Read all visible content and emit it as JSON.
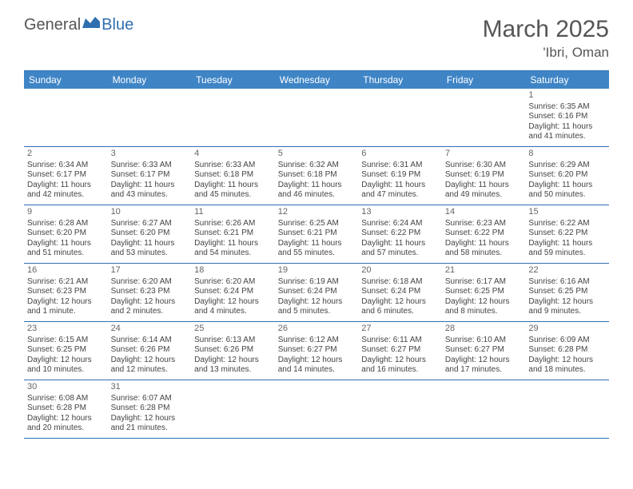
{
  "logo": {
    "part1": "General",
    "part2": "Blue"
  },
  "title": "March 2025",
  "location": "'Ibri, Oman",
  "colors": {
    "header_bg": "#3f85c6",
    "rule": "#2f6fb0",
    "logo_accent": "#2f6fb0",
    "text_muted": "#555"
  },
  "dayNames": [
    "Sunday",
    "Monday",
    "Tuesday",
    "Wednesday",
    "Thursday",
    "Friday",
    "Saturday"
  ],
  "weeks": [
    [
      null,
      null,
      null,
      null,
      null,
      null,
      {
        "n": "1",
        "sr": "Sunrise: 6:35 AM",
        "ss": "Sunset: 6:16 PM",
        "dl": "Daylight: 11 hours and 41 minutes."
      }
    ],
    [
      {
        "n": "2",
        "sr": "Sunrise: 6:34 AM",
        "ss": "Sunset: 6:17 PM",
        "dl": "Daylight: 11 hours and 42 minutes."
      },
      {
        "n": "3",
        "sr": "Sunrise: 6:33 AM",
        "ss": "Sunset: 6:17 PM",
        "dl": "Daylight: 11 hours and 43 minutes."
      },
      {
        "n": "4",
        "sr": "Sunrise: 6:33 AM",
        "ss": "Sunset: 6:18 PM",
        "dl": "Daylight: 11 hours and 45 minutes."
      },
      {
        "n": "5",
        "sr": "Sunrise: 6:32 AM",
        "ss": "Sunset: 6:18 PM",
        "dl": "Daylight: 11 hours and 46 minutes."
      },
      {
        "n": "6",
        "sr": "Sunrise: 6:31 AM",
        "ss": "Sunset: 6:19 PM",
        "dl": "Daylight: 11 hours and 47 minutes."
      },
      {
        "n": "7",
        "sr": "Sunrise: 6:30 AM",
        "ss": "Sunset: 6:19 PM",
        "dl": "Daylight: 11 hours and 49 minutes."
      },
      {
        "n": "8",
        "sr": "Sunrise: 6:29 AM",
        "ss": "Sunset: 6:20 PM",
        "dl": "Daylight: 11 hours and 50 minutes."
      }
    ],
    [
      {
        "n": "9",
        "sr": "Sunrise: 6:28 AM",
        "ss": "Sunset: 6:20 PM",
        "dl": "Daylight: 11 hours and 51 minutes."
      },
      {
        "n": "10",
        "sr": "Sunrise: 6:27 AM",
        "ss": "Sunset: 6:20 PM",
        "dl": "Daylight: 11 hours and 53 minutes."
      },
      {
        "n": "11",
        "sr": "Sunrise: 6:26 AM",
        "ss": "Sunset: 6:21 PM",
        "dl": "Daylight: 11 hours and 54 minutes."
      },
      {
        "n": "12",
        "sr": "Sunrise: 6:25 AM",
        "ss": "Sunset: 6:21 PM",
        "dl": "Daylight: 11 hours and 55 minutes."
      },
      {
        "n": "13",
        "sr": "Sunrise: 6:24 AM",
        "ss": "Sunset: 6:22 PM",
        "dl": "Daylight: 11 hours and 57 minutes."
      },
      {
        "n": "14",
        "sr": "Sunrise: 6:23 AM",
        "ss": "Sunset: 6:22 PM",
        "dl": "Daylight: 11 hours and 58 minutes."
      },
      {
        "n": "15",
        "sr": "Sunrise: 6:22 AM",
        "ss": "Sunset: 6:22 PM",
        "dl": "Daylight: 11 hours and 59 minutes."
      }
    ],
    [
      {
        "n": "16",
        "sr": "Sunrise: 6:21 AM",
        "ss": "Sunset: 6:23 PM",
        "dl": "Daylight: 12 hours and 1 minute."
      },
      {
        "n": "17",
        "sr": "Sunrise: 6:20 AM",
        "ss": "Sunset: 6:23 PM",
        "dl": "Daylight: 12 hours and 2 minutes."
      },
      {
        "n": "18",
        "sr": "Sunrise: 6:20 AM",
        "ss": "Sunset: 6:24 PM",
        "dl": "Daylight: 12 hours and 4 minutes."
      },
      {
        "n": "19",
        "sr": "Sunrise: 6:19 AM",
        "ss": "Sunset: 6:24 PM",
        "dl": "Daylight: 12 hours and 5 minutes."
      },
      {
        "n": "20",
        "sr": "Sunrise: 6:18 AM",
        "ss": "Sunset: 6:24 PM",
        "dl": "Daylight: 12 hours and 6 minutes."
      },
      {
        "n": "21",
        "sr": "Sunrise: 6:17 AM",
        "ss": "Sunset: 6:25 PM",
        "dl": "Daylight: 12 hours and 8 minutes."
      },
      {
        "n": "22",
        "sr": "Sunrise: 6:16 AM",
        "ss": "Sunset: 6:25 PM",
        "dl": "Daylight: 12 hours and 9 minutes."
      }
    ],
    [
      {
        "n": "23",
        "sr": "Sunrise: 6:15 AM",
        "ss": "Sunset: 6:25 PM",
        "dl": "Daylight: 12 hours and 10 minutes."
      },
      {
        "n": "24",
        "sr": "Sunrise: 6:14 AM",
        "ss": "Sunset: 6:26 PM",
        "dl": "Daylight: 12 hours and 12 minutes."
      },
      {
        "n": "25",
        "sr": "Sunrise: 6:13 AM",
        "ss": "Sunset: 6:26 PM",
        "dl": "Daylight: 12 hours and 13 minutes."
      },
      {
        "n": "26",
        "sr": "Sunrise: 6:12 AM",
        "ss": "Sunset: 6:27 PM",
        "dl": "Daylight: 12 hours and 14 minutes."
      },
      {
        "n": "27",
        "sr": "Sunrise: 6:11 AM",
        "ss": "Sunset: 6:27 PM",
        "dl": "Daylight: 12 hours and 16 minutes."
      },
      {
        "n": "28",
        "sr": "Sunrise: 6:10 AM",
        "ss": "Sunset: 6:27 PM",
        "dl": "Daylight: 12 hours and 17 minutes."
      },
      {
        "n": "29",
        "sr": "Sunrise: 6:09 AM",
        "ss": "Sunset: 6:28 PM",
        "dl": "Daylight: 12 hours and 18 minutes."
      }
    ],
    [
      {
        "n": "30",
        "sr": "Sunrise: 6:08 AM",
        "ss": "Sunset: 6:28 PM",
        "dl": "Daylight: 12 hours and 20 minutes."
      },
      {
        "n": "31",
        "sr": "Sunrise: 6:07 AM",
        "ss": "Sunset: 6:28 PM",
        "dl": "Daylight: 12 hours and 21 minutes."
      },
      null,
      null,
      null,
      null,
      null
    ]
  ]
}
